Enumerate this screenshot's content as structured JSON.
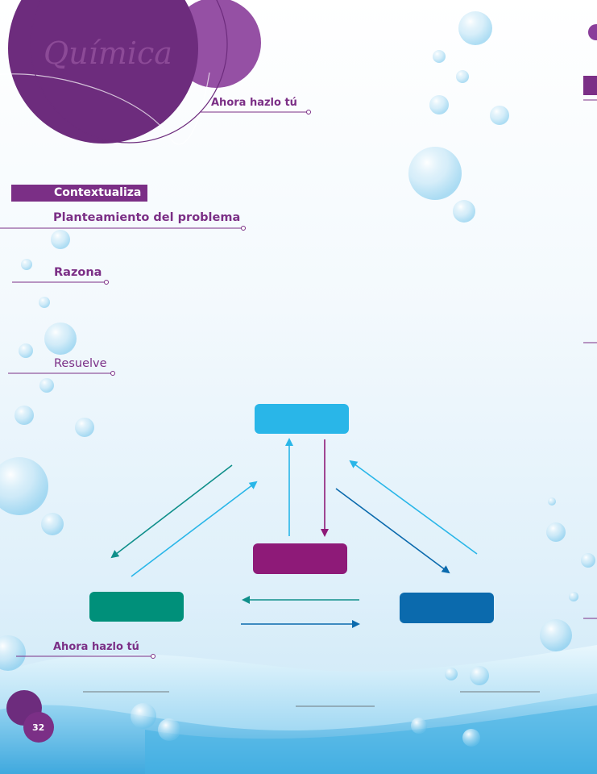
{
  "header": {
    "subject": "Química",
    "ahora_hazlo_tu_top": "Ahora hazlo tú"
  },
  "sections": {
    "contextualiza": "Contextualiza",
    "planteamiento": "Planteamiento del problema",
    "razona": "Razona",
    "resuelve": "Resuelve",
    "ahora_hazlo_tu_bottom": "Ahora hazlo tú"
  },
  "footer": {
    "page_number": "32"
  },
  "diagram": {
    "box_colors": {
      "top": "#29b6e8",
      "center": "#8e1a78",
      "left": "#00907a",
      "right": "#0b6aad"
    },
    "arrow_colors": {
      "teal": "#0f8f8a",
      "cyan": "#29b6e8",
      "purple": "#8e1a78",
      "blue": "#0b6aad"
    }
  },
  "colors": {
    "brand_purple": "#7b2f86",
    "light_purple": "#8a3d9a"
  }
}
